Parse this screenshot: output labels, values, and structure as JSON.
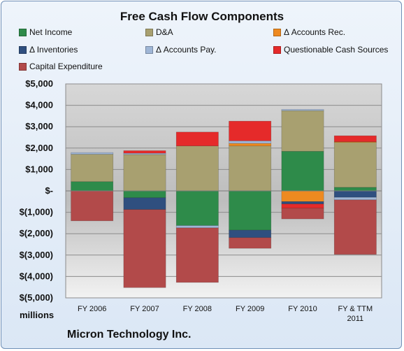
{
  "chart_data": {
    "type": "bar",
    "stacked": true,
    "title": "Free Cash Flow Components",
    "units_label": "millions",
    "footer": "Micron Technology Inc.",
    "categories": [
      "FY 2006",
      "FY 2007",
      "FY 2008",
      "FY 2009",
      "FY 2010",
      "FY & TTM 2011"
    ],
    "ylim": [
      -5000,
      5000
    ],
    "yticks": [
      5000,
      4000,
      3000,
      2000,
      1000,
      0,
      -1000,
      -2000,
      -3000,
      -4000,
      -5000
    ],
    "ytick_labels": [
      "$5,000",
      "$4,000",
      "$3,000",
      "$2,000",
      "$1,000",
      "$-",
      "$(1,000)",
      "$(2,000)",
      "$(3,000)",
      "$(4,000)",
      "$(5,000)"
    ],
    "grid": true,
    "legend_position": "top",
    "series": [
      {
        "name": "Net Income",
        "color": "#2e8b4a",
        "values": [
          433,
          -320,
          -1619,
          -1835,
          1850,
          167
        ]
      },
      {
        "name": "D&A",
        "color": "#a8a070",
        "values": [
          1280,
          1700,
          2100,
          2100,
          1900,
          2100
        ]
      },
      {
        "name": "Δ Accounts Rec.",
        "color": "#ee8a20",
        "values": [
          0,
          0,
          0,
          120,
          -500,
          30
        ]
      },
      {
        "name": "Δ Inventories",
        "color": "#2f4f7f",
        "values": [
          0,
          -550,
          0,
          -350,
          -110,
          -300
        ]
      },
      {
        "name": "Δ Accounts Pay.",
        "color": "#9fb6d6",
        "values": [
          80,
          60,
          -110,
          120,
          60,
          -120
        ]
      },
      {
        "name": "Questionable Cash Sources",
        "color": "#e52a2a",
        "values": [
          0,
          120,
          650,
          920,
          -200,
          280
        ]
      },
      {
        "name": "Capital Expenditure",
        "color": "#b24a4a",
        "values": [
          -1400,
          -3650,
          -2550,
          -500,
          -500,
          -2550
        ]
      }
    ]
  }
}
